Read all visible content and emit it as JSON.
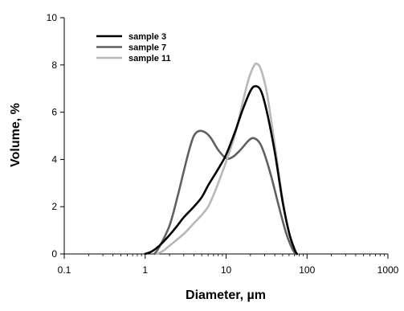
{
  "chart_data": {
    "type": "line",
    "xlabel": "Diameter, µm",
    "ylabel": "Volume, %",
    "x_scale": "log",
    "xlim": [
      0.1,
      1000
    ],
    "ylim": [
      0,
      10
    ],
    "x_ticks": [
      "0.1",
      "1",
      "10",
      "100",
      "1000"
    ],
    "y_ticks": [
      "0",
      "2",
      "4",
      "6",
      "8",
      "10"
    ],
    "grid": false,
    "legend_position": "top-left",
    "series": [
      {
        "name": "sample 3",
        "color": "#000000",
        "points": [
          [
            1,
            0
          ],
          [
            1.2,
            0.1
          ],
          [
            1.5,
            0.35
          ],
          [
            2,
            0.8
          ],
          [
            2.5,
            1.2
          ],
          [
            3,
            1.55
          ],
          [
            4,
            2.0
          ],
          [
            5,
            2.4
          ],
          [
            6,
            2.9
          ],
          [
            8,
            3.6
          ],
          [
            10,
            4.2
          ],
          [
            13,
            5.2
          ],
          [
            16,
            6.1
          ],
          [
            20,
            6.9
          ],
          [
            23,
            7.1
          ],
          [
            27,
            6.9
          ],
          [
            32,
            6.0
          ],
          [
            40,
            4.3
          ],
          [
            50,
            2.2
          ],
          [
            60,
            0.9
          ],
          [
            70,
            0.2
          ],
          [
            75,
            0
          ]
        ]
      },
      {
        "name": "sample 7",
        "color": "#606060",
        "points": [
          [
            1.3,
            0
          ],
          [
            1.5,
            0.3
          ],
          [
            2,
            1.2
          ],
          [
            2.5,
            2.4
          ],
          [
            3,
            3.5
          ],
          [
            3.5,
            4.4
          ],
          [
            4,
            5.0
          ],
          [
            4.6,
            5.2
          ],
          [
            5.5,
            5.15
          ],
          [
            6.5,
            4.9
          ],
          [
            8,
            4.4
          ],
          [
            10,
            4.05
          ],
          [
            12,
            4.1
          ],
          [
            15,
            4.4
          ],
          [
            19,
            4.8
          ],
          [
            22,
            4.9
          ],
          [
            26,
            4.7
          ],
          [
            30,
            4.2
          ],
          [
            36,
            3.3
          ],
          [
            45,
            2.0
          ],
          [
            55,
            0.9
          ],
          [
            65,
            0.25
          ],
          [
            72,
            0
          ]
        ]
      },
      {
        "name": "sample 11",
        "color": "#b8b8b8",
        "points": [
          [
            1.4,
            0
          ],
          [
            1.7,
            0.15
          ],
          [
            2,
            0.35
          ],
          [
            3,
            0.85
          ],
          [
            4,
            1.3
          ],
          [
            5,
            1.65
          ],
          [
            6,
            2.0
          ],
          [
            7,
            2.5
          ],
          [
            8,
            3.0
          ],
          [
            10,
            3.9
          ],
          [
            13,
            5.1
          ],
          [
            16,
            6.4
          ],
          [
            19,
            7.4
          ],
          [
            22,
            7.95
          ],
          [
            24,
            8.05
          ],
          [
            27,
            7.8
          ],
          [
            32,
            6.8
          ],
          [
            40,
            4.6
          ],
          [
            50,
            2.3
          ],
          [
            60,
            0.9
          ],
          [
            70,
            0.2
          ],
          [
            76,
            0
          ]
        ]
      }
    ]
  }
}
